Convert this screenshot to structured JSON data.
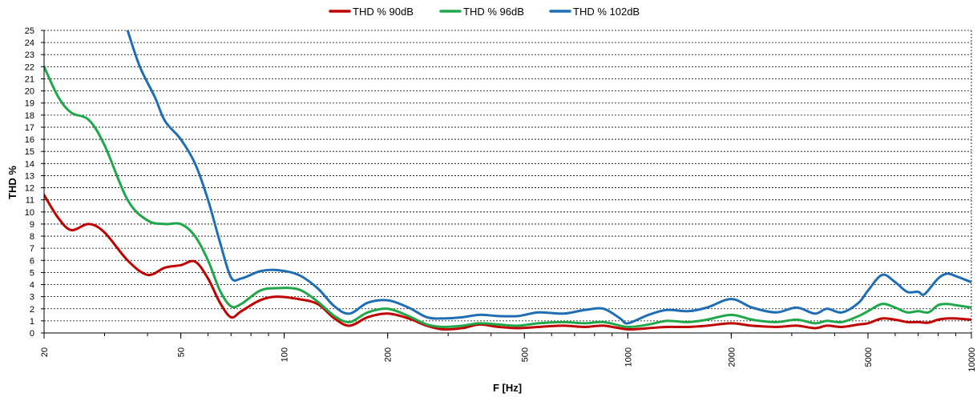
{
  "chart_data": {
    "type": "line",
    "title": "",
    "xlabel": "F [Hz]",
    "ylabel": "THD %",
    "x_scale": "log",
    "xlim": [
      20,
      10000
    ],
    "ylim": [
      0,
      25
    ],
    "x_ticks": [
      "20",
      "50",
      "100",
      "200",
      "500",
      "1000",
      "2000",
      "5000",
      "10000"
    ],
    "y_ticks": [
      "0",
      "1",
      "2",
      "3",
      "4",
      "5",
      "6",
      "7",
      "8",
      "9",
      "10",
      "11",
      "12",
      "13",
      "14",
      "15",
      "16",
      "17",
      "18",
      "19",
      "20",
      "21",
      "22",
      "23",
      "24",
      "25"
    ],
    "grid": "horizontal",
    "legend_position": "top",
    "series": [
      {
        "name": "THD % 90dB",
        "color": "#c00000",
        "points": [
          [
            20,
            11.4
          ],
          [
            22,
            9.5
          ],
          [
            24,
            8.5
          ],
          [
            27,
            9.0
          ],
          [
            30,
            8.3
          ],
          [
            35,
            6.0
          ],
          [
            40,
            4.8
          ],
          [
            45,
            5.4
          ],
          [
            50,
            5.6
          ],
          [
            55,
            5.9
          ],
          [
            60,
            4.5
          ],
          [
            65,
            2.5
          ],
          [
            70,
            1.3
          ],
          [
            75,
            1.8
          ],
          [
            85,
            2.7
          ],
          [
            95,
            3.0
          ],
          [
            110,
            2.8
          ],
          [
            125,
            2.4
          ],
          [
            140,
            1.2
          ],
          [
            155,
            0.6
          ],
          [
            175,
            1.3
          ],
          [
            200,
            1.6
          ],
          [
            230,
            1.2
          ],
          [
            260,
            0.6
          ],
          [
            290,
            0.3
          ],
          [
            330,
            0.4
          ],
          [
            370,
            0.7
          ],
          [
            420,
            0.5
          ],
          [
            480,
            0.4
          ],
          [
            550,
            0.5
          ],
          [
            650,
            0.6
          ],
          [
            750,
            0.5
          ],
          [
            850,
            0.6
          ],
          [
            1000,
            0.3
          ],
          [
            1150,
            0.4
          ],
          [
            1300,
            0.5
          ],
          [
            1500,
            0.5
          ],
          [
            1700,
            0.6
          ],
          [
            2000,
            0.8
          ],
          [
            2300,
            0.6
          ],
          [
            2700,
            0.5
          ],
          [
            3100,
            0.6
          ],
          [
            3500,
            0.4
          ],
          [
            3800,
            0.6
          ],
          [
            4200,
            0.5
          ],
          [
            4700,
            0.7
          ],
          [
            5000,
            0.8
          ],
          [
            5500,
            1.2
          ],
          [
            6000,
            1.1
          ],
          [
            6500,
            0.9
          ],
          [
            7000,
            0.9
          ],
          [
            7500,
            0.85
          ],
          [
            8000,
            1.1
          ],
          [
            8500,
            1.2
          ],
          [
            9000,
            1.2
          ],
          [
            10000,
            1.1
          ]
        ]
      },
      {
        "name": "THD % 96dB",
        "color": "#1fa74a",
        "points": [
          [
            20,
            22.0
          ],
          [
            22,
            19.5
          ],
          [
            24,
            18.2
          ],
          [
            27,
            17.6
          ],
          [
            30,
            15.5
          ],
          [
            35,
            11.0
          ],
          [
            40,
            9.3
          ],
          [
            45,
            9.0
          ],
          [
            50,
            9.0
          ],
          [
            55,
            8.0
          ],
          [
            60,
            6.0
          ],
          [
            65,
            3.5
          ],
          [
            70,
            2.2
          ],
          [
            75,
            2.4
          ],
          [
            85,
            3.5
          ],
          [
            95,
            3.7
          ],
          [
            110,
            3.6
          ],
          [
            125,
            2.6
          ],
          [
            140,
            1.4
          ],
          [
            155,
            0.9
          ],
          [
            175,
            1.7
          ],
          [
            200,
            2.0
          ],
          [
            230,
            1.4
          ],
          [
            260,
            0.7
          ],
          [
            290,
            0.5
          ],
          [
            330,
            0.6
          ],
          [
            370,
            0.8
          ],
          [
            420,
            0.7
          ],
          [
            480,
            0.6
          ],
          [
            550,
            0.8
          ],
          [
            650,
            0.9
          ],
          [
            750,
            0.8
          ],
          [
            850,
            0.9
          ],
          [
            1000,
            0.5
          ],
          [
            1150,
            0.7
          ],
          [
            1300,
            1.0
          ],
          [
            1500,
            0.9
          ],
          [
            1700,
            1.1
          ],
          [
            2000,
            1.5
          ],
          [
            2300,
            1.1
          ],
          [
            2700,
            0.9
          ],
          [
            3100,
            1.1
          ],
          [
            3500,
            0.8
          ],
          [
            3800,
            1.0
          ],
          [
            4200,
            0.9
          ],
          [
            4700,
            1.4
          ],
          [
            5000,
            1.8
          ],
          [
            5500,
            2.4
          ],
          [
            6000,
            2.1
          ],
          [
            6500,
            1.7
          ],
          [
            7000,
            1.8
          ],
          [
            7500,
            1.7
          ],
          [
            8000,
            2.3
          ],
          [
            8500,
            2.4
          ],
          [
            9000,
            2.3
          ],
          [
            10000,
            2.1
          ]
        ]
      },
      {
        "name": "THD % 102dB",
        "color": "#1f6eb4",
        "points": [
          [
            35,
            25.0
          ],
          [
            38,
            22.0
          ],
          [
            42,
            19.5
          ],
          [
            45,
            17.5
          ],
          [
            50,
            16.0
          ],
          [
            55,
            14.0
          ],
          [
            60,
            11.0
          ],
          [
            65,
            7.5
          ],
          [
            70,
            4.6
          ],
          [
            75,
            4.5
          ],
          [
            85,
            5.1
          ],
          [
            95,
            5.2
          ],
          [
            110,
            4.8
          ],
          [
            125,
            3.7
          ],
          [
            140,
            2.2
          ],
          [
            155,
            1.6
          ],
          [
            175,
            2.5
          ],
          [
            200,
            2.7
          ],
          [
            230,
            2.1
          ],
          [
            260,
            1.3
          ],
          [
            290,
            1.2
          ],
          [
            330,
            1.3
          ],
          [
            370,
            1.5
          ],
          [
            420,
            1.4
          ],
          [
            480,
            1.4
          ],
          [
            550,
            1.7
          ],
          [
            650,
            1.6
          ],
          [
            750,
            1.9
          ],
          [
            850,
            2.0
          ],
          [
            950,
            1.2
          ],
          [
            1000,
            0.8
          ],
          [
            1150,
            1.5
          ],
          [
            1300,
            1.9
          ],
          [
            1500,
            1.8
          ],
          [
            1700,
            2.1
          ],
          [
            2000,
            2.8
          ],
          [
            2300,
            2.1
          ],
          [
            2700,
            1.7
          ],
          [
            3100,
            2.1
          ],
          [
            3500,
            1.6
          ],
          [
            3800,
            2.0
          ],
          [
            4200,
            1.7
          ],
          [
            4700,
            2.5
          ],
          [
            5000,
            3.5
          ],
          [
            5500,
            4.8
          ],
          [
            6000,
            4.2
          ],
          [
            6500,
            3.4
          ],
          [
            7000,
            3.4
          ],
          [
            7300,
            3.2
          ],
          [
            8000,
            4.5
          ],
          [
            8500,
            4.9
          ],
          [
            9000,
            4.7
          ],
          [
            10000,
            4.2
          ]
        ]
      }
    ]
  }
}
